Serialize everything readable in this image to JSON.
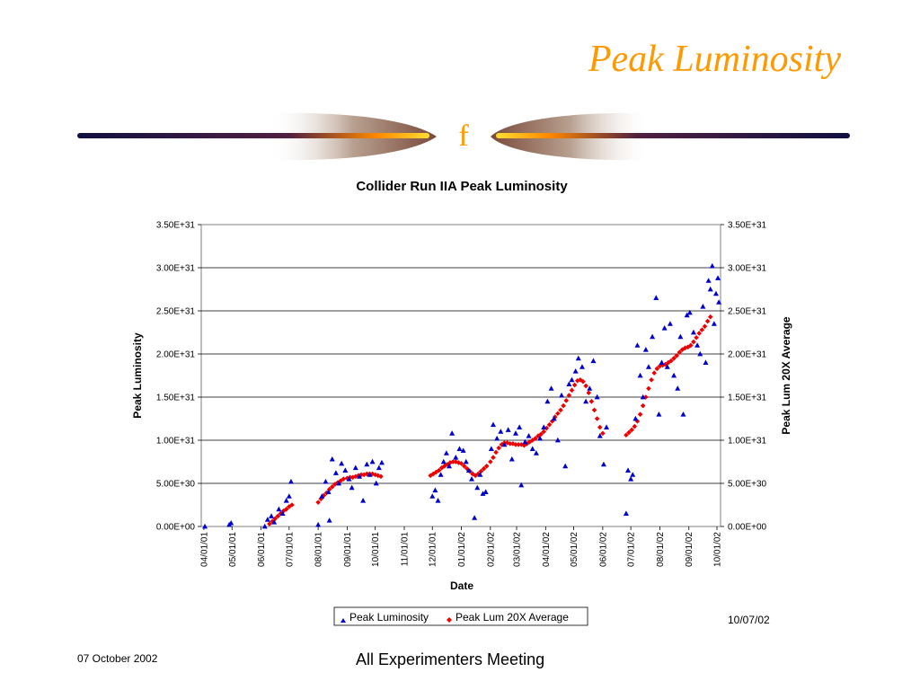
{
  "slide": {
    "title": "Peak Luminosity",
    "logo_letter": "f",
    "footer_date": "07 October 2002",
    "footer_meeting": "All Experimenters Meeting",
    "colors": {
      "title": "#ff9900",
      "rule_dark": "#1a1a4a",
      "rule_accent": "#ffcc00"
    }
  },
  "chart_data": {
    "type": "scatter",
    "title": "Collider Run IIA Peak Luminosity",
    "xlabel": "Date",
    "ylabel": "Peak Luminosity",
    "y2label": "Peak Lum 20X Average",
    "date_stamp": "10/07/02",
    "grid": true,
    "legend_position": "bottom",
    "ylim": [
      0,
      3.5e+31
    ],
    "yticks": [
      "0.00E+00",
      "5.00E+30",
      "1.00E+31",
      "1.50E+31",
      "2.00E+31",
      "2.50E+31",
      "3.00E+31",
      "3.50E+31"
    ],
    "xticks": [
      "04/01/01",
      "05/01/01",
      "06/01/01",
      "07/01/01",
      "08/01/01",
      "09/01/01",
      "10/01/01",
      "11/01/01",
      "12/01/01",
      "01/01/02",
      "02/01/02",
      "03/01/02",
      "04/01/02",
      "05/01/02",
      "06/01/02",
      "07/01/02",
      "08/01/02",
      "09/01/02",
      "10/01/02"
    ],
    "series": [
      {
        "name": "Peak Luminosity",
        "marker": "triangle",
        "color": "#0000cc",
        "points": [
          [
            "04/02/01",
            0.0
          ],
          [
            "04/28/01",
            2e+29
          ],
          [
            "04/30/01",
            4e+29
          ],
          [
            "06/05/01",
            0.0
          ],
          [
            "06/08/01",
            8e+29
          ],
          [
            "06/12/01",
            1.2e+30
          ],
          [
            "06/15/01",
            5e+29
          ],
          [
            "06/20/01",
            2e+30
          ],
          [
            "06/24/01",
            1.5e+30
          ],
          [
            "06/28/01",
            3e+30
          ],
          [
            "07/01/01",
            3.5e+30
          ],
          [
            "07/03/01",
            5.2e+30
          ],
          [
            "08/01/01",
            2e+29
          ],
          [
            "08/05/01",
            3.5e+30
          ],
          [
            "08/09/01",
            5.2e+30
          ],
          [
            "08/12/01",
            4e+30
          ],
          [
            "08/13/01",
            7e+29
          ],
          [
            "08/16/01",
            7.8e+30
          ],
          [
            "08/20/01",
            6.2e+30
          ],
          [
            "08/23/01",
            5e+30
          ],
          [
            "08/26/01",
            7.3e+30
          ],
          [
            "08/30/01",
            6.5e+30
          ],
          [
            "09/03/01",
            5.5e+30
          ],
          [
            "09/06/01",
            4.5e+30
          ],
          [
            "09/10/01",
            6.8e+30
          ],
          [
            "09/14/01",
            5.8e+30
          ],
          [
            "09/18/01",
            3e+30
          ],
          [
            "09/22/01",
            7.2e+30
          ],
          [
            "09/25/01",
            6e+30
          ],
          [
            "09/28/01",
            7.5e+30
          ],
          [
            "10/02/01",
            5e+30
          ],
          [
            "10/05/01",
            6.8e+30
          ],
          [
            "10/08/01",
            7.4e+30
          ],
          [
            "12/01/01",
            3.5e+30
          ],
          [
            "12/04/01",
            4.2e+30
          ],
          [
            "12/07/01",
            3e+30
          ],
          [
            "12/10/01",
            6e+30
          ],
          [
            "12/13/01",
            7.5e+30
          ],
          [
            "12/16/01",
            8.5e+30
          ],
          [
            "12/19/01",
            7e+30
          ],
          [
            "12/22/01",
            1.08e+31
          ],
          [
            "12/26/01",
            8e+30
          ],
          [
            "12/30/01",
            9e+30
          ],
          [
            "01/03/02",
            8.8e+30
          ],
          [
            "01/06/02",
            7.5e+30
          ],
          [
            "01/09/02",
            6.5e+30
          ],
          [
            "01/12/02",
            5.5e+30
          ],
          [
            "01/15/02",
            1e+30
          ],
          [
            "01/18/02",
            4.5e+30
          ],
          [
            "01/21/02",
            6e+30
          ],
          [
            "01/24/02",
            3.8e+30
          ],
          [
            "01/27/02",
            4e+30
          ],
          [
            "02/02/02",
            9e+30
          ],
          [
            "02/04/02",
            1.18e+31
          ],
          [
            "02/08/02",
            1.02e+31
          ],
          [
            "02/12/02",
            1.1e+31
          ],
          [
            "02/16/02",
            9.5e+30
          ],
          [
            "02/20/02",
            1.12e+31
          ],
          [
            "02/24/02",
            7.8e+30
          ],
          [
            "02/28/02",
            1.08e+31
          ],
          [
            "03/04/02",
            1.15e+31
          ],
          [
            "03/06/02",
            4.8e+30
          ],
          [
            "03/10/02",
            9.8e+30
          ],
          [
            "03/14/02",
            1.05e+31
          ],
          [
            "03/18/02",
            9e+30
          ],
          [
            "03/22/02",
            8.5e+30
          ],
          [
            "03/26/02",
            1.02e+31
          ],
          [
            "03/30/02",
            1.15e+31
          ],
          [
            "04/03/02",
            1.45e+31
          ],
          [
            "04/07/02",
            1.6e+31
          ],
          [
            "04/10/02",
            1.25e+31
          ],
          [
            "04/14/02",
            1e+31
          ],
          [
            "04/18/02",
            1.52e+31
          ],
          [
            "04/22/02",
            7e+30
          ],
          [
            "04/26/02",
            1.65e+31
          ],
          [
            "04/29/02",
            1.7e+31
          ],
          [
            "05/03/02",
            1.8e+31
          ],
          [
            "05/06/02",
            1.95e+31
          ],
          [
            "05/10/02",
            1.85e+31
          ],
          [
            "05/14/02",
            1.45e+31
          ],
          [
            "05/18/02",
            1.6e+31
          ],
          [
            "05/22/02",
            1.92e+31
          ],
          [
            "05/26/02",
            1.5e+31
          ],
          [
            "05/29/02",
            1.05e+31
          ],
          [
            "06/02/02",
            7.2e+30
          ],
          [
            "06/05/02",
            1.15e+31
          ],
          [
            "06/26/02",
            1.5e+30
          ],
          [
            "06/28/02",
            6.5e+30
          ],
          [
            "07/01/02",
            5.5e+30
          ],
          [
            "07/03/02",
            6e+30
          ],
          [
            "07/06/02",
            1.25e+31
          ],
          [
            "07/08/02",
            2.1e+31
          ],
          [
            "07/11/02",
            1.75e+31
          ],
          [
            "07/14/02",
            1.5e+31
          ],
          [
            "07/17/02",
            2.05e+31
          ],
          [
            "07/20/02",
            1.85e+31
          ],
          [
            "07/24/02",
            2.2e+31
          ],
          [
            "07/28/02",
            2.65e+31
          ],
          [
            "07/31/02",
            1.3e+31
          ],
          [
            "08/03/02",
            1.9e+31
          ],
          [
            "08/06/02",
            2.3e+31
          ],
          [
            "08/09/02",
            1.85e+31
          ],
          [
            "08/12/02",
            2.35e+31
          ],
          [
            "08/16/02",
            1.75e+31
          ],
          [
            "08/20/02",
            1.6e+31
          ],
          [
            "08/23/02",
            2.2e+31
          ],
          [
            "08/26/02",
            1.3e+31
          ],
          [
            "08/30/02",
            2.45e+31
          ],
          [
            "09/02/02",
            2.48e+31
          ],
          [
            "09/06/02",
            2.25e+31
          ],
          [
            "09/10/02",
            2.1e+31
          ],
          [
            "09/13/02",
            2e+31
          ],
          [
            "09/16/02",
            2.55e+31
          ],
          [
            "09/19/02",
            1.9e+31
          ],
          [
            "09/22/02",
            2.85e+31
          ],
          [
            "09/24/02",
            2.75e+31
          ],
          [
            "09/26/02",
            3.02e+31
          ],
          [
            "09/28/02",
            2.35e+31
          ],
          [
            "09/30/02",
            2.7e+31
          ],
          [
            "10/02/02",
            2.88e+31
          ],
          [
            "10/03/02",
            2.6e+31
          ]
        ]
      },
      {
        "name": "Peak Lum 20X Average",
        "marker": "diamond",
        "color": "#ee0000",
        "points": [
          [
            "06/10/01",
            3e+29
          ],
          [
            "06/13/01",
            6e+29
          ],
          [
            "06/16/01",
            9e+29
          ],
          [
            "06/19/01",
            1.2e+30
          ],
          [
            "06/22/01",
            1.5e+30
          ],
          [
            "06/25/01",
            1.8e+30
          ],
          [
            "06/28/01",
            2e+30
          ],
          [
            "07/01/01",
            2.3e+30
          ],
          [
            "07/04/01",
            2.5e+30
          ],
          [
            "08/01/01",
            2.8e+30
          ],
          [
            "08/04/01",
            3.2e+30
          ],
          [
            "08/07/01",
            3.6e+30
          ],
          [
            "08/10/01",
            3.9e+30
          ],
          [
            "08/13/01",
            4.3e+30
          ],
          [
            "08/16/01",
            4.6e+30
          ],
          [
            "08/19/01",
            4.9e+30
          ],
          [
            "08/22/01",
            5.1e+30
          ],
          [
            "08/25/01",
            5.3e+30
          ],
          [
            "08/28/01",
            5.5e+30
          ],
          [
            "09/01/01",
            5.6e+30
          ],
          [
            "09/04/01",
            5.7e+30
          ],
          [
            "09/07/01",
            5.7e+30
          ],
          [
            "09/10/01",
            5.8e+30
          ],
          [
            "09/13/01",
            5.9e+30
          ],
          [
            "09/16/01",
            6e+30
          ],
          [
            "09/19/01",
            6e+30
          ],
          [
            "09/22/01",
            6.1e+30
          ],
          [
            "09/25/01",
            6.1e+30
          ],
          [
            "09/28/01",
            6.1e+30
          ],
          [
            "10/01/01",
            6e+30
          ],
          [
            "10/04/01",
            5.9e+30
          ],
          [
            "10/07/01",
            5.8e+30
          ],
          [
            "11/29/01",
            5.9e+30
          ],
          [
            "12/02/01",
            6.1e+30
          ],
          [
            "12/05/01",
            6.3e+30
          ],
          [
            "12/08/01",
            6.5e+30
          ],
          [
            "12/11/01",
            6.8e+30
          ],
          [
            "12/14/01",
            7e+30
          ],
          [
            "12/17/01",
            7.2e+30
          ],
          [
            "12/20/01",
            7.4e+30
          ],
          [
            "12/23/01",
            7.5e+30
          ],
          [
            "12/26/01",
            7.5e+30
          ],
          [
            "12/29/01",
            7.4e+30
          ],
          [
            "01/01/02",
            7.3e+30
          ],
          [
            "01/04/02",
            7e+30
          ],
          [
            "01/07/02",
            6.7e+30
          ],
          [
            "01/10/02",
            6.4e+30
          ],
          [
            "01/13/02",
            6.1e+30
          ],
          [
            "01/16/02",
            5.9e+30
          ],
          [
            "01/19/02",
            6.1e+30
          ],
          [
            "01/22/02",
            6.4e+30
          ],
          [
            "01/25/02",
            6.7e+30
          ],
          [
            "01/28/02",
            7e+30
          ],
          [
            "02/01/02",
            7.5e+30
          ],
          [
            "02/04/02",
            8e+30
          ],
          [
            "02/07/02",
            8.6e+30
          ],
          [
            "02/10/02",
            9.1e+30
          ],
          [
            "02/13/02",
            9.5e+30
          ],
          [
            "02/16/02",
            9.7e+30
          ],
          [
            "02/19/02",
            9.7e+30
          ],
          [
            "02/22/02",
            9.6e+30
          ],
          [
            "02/25/02",
            9.6e+30
          ],
          [
            "02/28/02",
            9.5e+30
          ],
          [
            "03/03/02",
            9.5e+30
          ],
          [
            "03/06/02",
            9.5e+30
          ],
          [
            "03/09/02",
            9.4e+30
          ],
          [
            "03/12/02",
            9.6e+30
          ],
          [
            "03/15/02",
            9.8e+30
          ],
          [
            "03/18/02",
            1e+31
          ],
          [
            "03/21/02",
            1.02e+31
          ],
          [
            "03/24/02",
            1.05e+31
          ],
          [
            "03/27/02",
            1.07e+31
          ],
          [
            "03/30/02",
            1.1e+31
          ],
          [
            "04/02/02",
            1.14e+31
          ],
          [
            "04/05/02",
            1.18e+31
          ],
          [
            "04/08/02",
            1.22e+31
          ],
          [
            "04/11/02",
            1.27e+31
          ],
          [
            "04/14/02",
            1.31e+31
          ],
          [
            "04/17/02",
            1.35e+31
          ],
          [
            "04/20/02",
            1.4e+31
          ],
          [
            "04/23/02",
            1.46e+31
          ],
          [
            "04/26/02",
            1.52e+31
          ],
          [
            "04/29/02",
            1.58e+31
          ],
          [
            "05/02/02",
            1.64e+31
          ],
          [
            "05/05/02",
            1.69e+31
          ],
          [
            "05/08/02",
            1.7e+31
          ],
          [
            "05/11/02",
            1.68e+31
          ],
          [
            "05/14/02",
            1.63e+31
          ],
          [
            "05/17/02",
            1.55e+31
          ],
          [
            "05/20/02",
            1.45e+31
          ],
          [
            "05/23/02",
            1.35e+31
          ],
          [
            "05/26/02",
            1.25e+31
          ],
          [
            "05/29/02",
            1.15e+31
          ],
          [
            "06/01/02",
            1.08e+31
          ],
          [
            "06/26/02",
            1.06e+31
          ],
          [
            "06/29/02",
            1.09e+31
          ],
          [
            "07/02/02",
            1.12e+31
          ],
          [
            "07/05/02",
            1.16e+31
          ],
          [
            "07/08/02",
            1.22e+31
          ],
          [
            "07/11/02",
            1.3e+31
          ],
          [
            "07/14/02",
            1.4e+31
          ],
          [
            "07/17/02",
            1.5e+31
          ],
          [
            "07/20/02",
            1.6e+31
          ],
          [
            "07/23/02",
            1.7e+31
          ],
          [
            "07/26/02",
            1.78e+31
          ],
          [
            "07/29/02",
            1.83e+31
          ],
          [
            "08/01/02",
            1.86e+31
          ],
          [
            "08/04/02",
            1.87e+31
          ],
          [
            "08/07/02",
            1.88e+31
          ],
          [
            "08/10/02",
            1.9e+31
          ],
          [
            "08/13/02",
            1.92e+31
          ],
          [
            "08/16/02",
            1.95e+31
          ],
          [
            "08/19/02",
            1.98e+31
          ],
          [
            "08/22/02",
            2.02e+31
          ],
          [
            "08/25/02",
            2.05e+31
          ],
          [
            "08/28/02",
            2.07e+31
          ],
          [
            "08/31/02",
            2.08e+31
          ],
          [
            "09/03/02",
            2.1e+31
          ],
          [
            "09/06/02",
            2.14e+31
          ],
          [
            "09/09/02",
            2.19e+31
          ],
          [
            "09/12/02",
            2.24e+31
          ],
          [
            "09/15/02",
            2.28e+31
          ],
          [
            "09/18/02",
            2.32e+31
          ],
          [
            "09/21/02",
            2.38e+31
          ],
          [
            "09/24/02",
            2.43e+31
          ]
        ]
      }
    ]
  }
}
